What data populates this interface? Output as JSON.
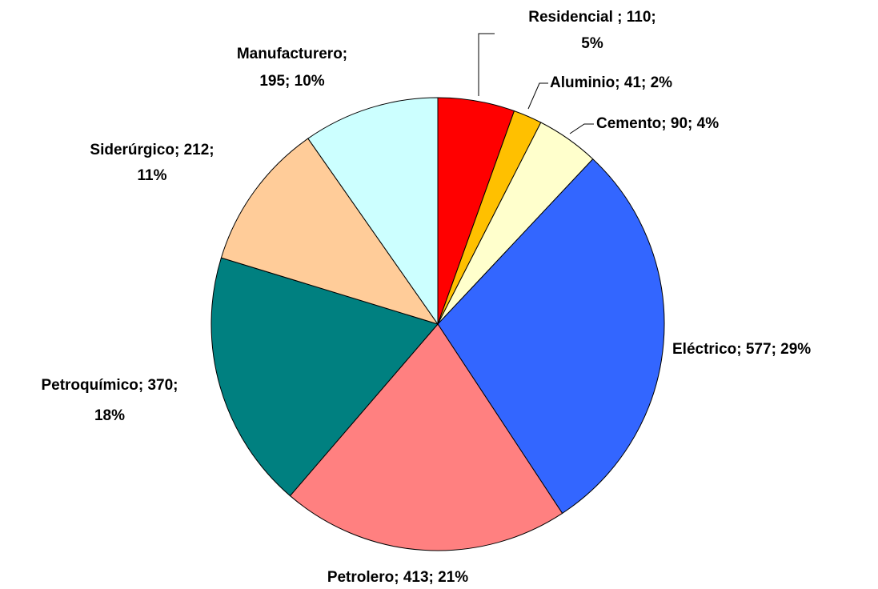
{
  "chart_data": {
    "type": "pie",
    "values": [
      110,
      41,
      90,
      577,
      413,
      370,
      212,
      195
    ],
    "value_labels": [
      [
        "Residencial ; 110;",
        "5%"
      ],
      [
        "Aluminio; 41; 2%"
      ],
      [
        "Cemento; 90; 4%"
      ],
      [
        "Eléctrico; 577; 29%"
      ],
      [
        "Petrolero; 413; 21%"
      ],
      [
        "Petroquímico; 370;",
        "18%"
      ],
      [
        "Siderúrgico; 212;",
        "11%"
      ],
      [
        "Manufacturero;",
        "195; 10%"
      ]
    ],
    "colors": [
      "#ff0000",
      "#ffc000",
      "#ffffcc",
      "#3366ff",
      "#ff8080",
      "#008080",
      "#ffcc99",
      "#ccffff"
    ]
  }
}
